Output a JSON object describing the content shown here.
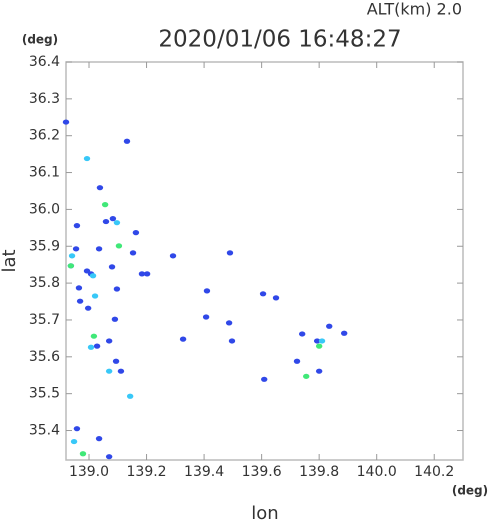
{
  "chart_data": {
    "type": "scatter",
    "title": "2020/01/06 16:48:27",
    "subtitle": "ALT(km)  2.0",
    "x_label": "lon",
    "y_label": "lat",
    "x_unit": "(deg)",
    "y_unit": "(deg)",
    "xlim": [
      138.92,
      140.3
    ],
    "ylim": [
      35.32,
      36.4
    ],
    "xticks": [
      {
        "value": 139.0,
        "label": "139.0"
      },
      139.2,
      139.4,
      139.6,
      139.8,
      {
        "value": 140.0,
        "label": "140.0"
      },
      140.2
    ],
    "yticks": [
      35.4,
      35.5,
      35.6,
      35.7,
      35.8,
      35.9,
      {
        "value": 36.0,
        "label": "36.0"
      },
      36.1,
      36.2,
      36.3,
      36.4
    ],
    "series": [
      {
        "color": "#3048e8",
        "x": [
          138.92,
          139.038,
          138.958,
          138.955,
          138.937,
          138.993,
          138.965,
          138.969,
          139.007,
          139.035,
          139.08,
          139.097,
          139.132,
          139.163,
          139.202,
          139.09,
          139.07,
          139.028,
          139.094,
          139.111,
          139.327,
          139.41,
          139.407,
          139.487,
          139.497,
          139.49,
          139.605,
          139.65,
          139.741,
          139.723,
          139.793,
          139.835,
          139.887,
          139.8,
          138.958,
          139.035,
          139.07,
          139.184,
          139.153,
          139.292,
          139.059,
          139.083,
          138.997,
          139.609
        ],
        "values": [
          36.237,
          36.059,
          35.956,
          35.893,
          35.847,
          35.833,
          35.787,
          35.751,
          35.825,
          35.893,
          35.844,
          35.784,
          36.185,
          35.937,
          35.825,
          35.702,
          35.643,
          35.629,
          35.588,
          35.561,
          35.648,
          35.779,
          35.708,
          35.692,
          35.643,
          35.882,
          35.771,
          35.76,
          35.662,
          35.588,
          35.643,
          35.683,
          35.664,
          35.561,
          35.405,
          35.378,
          35.329,
          35.825,
          35.882,
          35.874,
          35.967,
          35.975,
          35.732,
          35.539
        ]
      },
      {
        "color": "#38c8f8",
        "x": [
          138.993,
          138.941,
          139.014,
          139.021,
          138.948,
          139.007,
          139.143,
          139.81,
          139.07,
          139.097
        ],
        "values": [
          36.138,
          35.874,
          35.82,
          35.765,
          35.37,
          35.626,
          35.493,
          35.643,
          35.561,
          35.964
        ]
      },
      {
        "color": "#40e878",
        "x": [
          138.937,
          139.017,
          139.104,
          139.056,
          139.755,
          139.8,
          138.979
        ],
        "values": [
          35.847,
          35.656,
          35.901,
          36.013,
          35.547,
          35.629,
          35.337
        ]
      }
    ]
  }
}
